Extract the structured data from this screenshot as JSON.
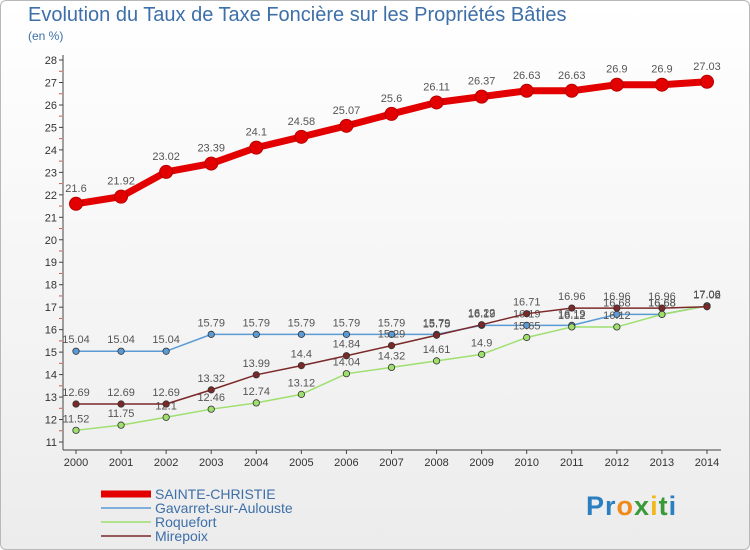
{
  "header": {
    "title": "Evolution du Taux de Taxe Foncière sur les Propriétés Bâties",
    "unit": "(en %)"
  },
  "logo": {
    "text": "Proxiti",
    "letters": [
      "P",
      "r",
      "o",
      "x",
      "i",
      "t",
      "i"
    ],
    "colors": [
      "#2a7fc0",
      "#2a7fc0",
      "#f08a1c",
      "#3a9a3a",
      "#f0b81c",
      "#3a9a3a",
      "#2a7fc0"
    ]
  },
  "chart_data": {
    "type": "line",
    "title": "Evolution du Taux de Taxe Foncière sur les Propriétés Bâties",
    "ylabel": "(en %)",
    "xlabel": "",
    "x": [
      2000,
      2001,
      2002,
      2003,
      2004,
      2005,
      2006,
      2007,
      2008,
      2009,
      2010,
      2011,
      2012,
      2013,
      2014
    ],
    "ylim": [
      11,
      28
    ],
    "yticks": [
      11,
      12,
      13,
      14,
      15,
      16,
      17,
      18,
      19,
      20,
      21,
      22,
      23,
      24,
      25,
      26,
      27,
      28
    ],
    "grid": false,
    "legend": "bottom-left",
    "series": [
      {
        "name": "SAINTE-CHRISTIE",
        "color": "#e30000",
        "values": [
          21.6,
          21.92,
          23.02,
          23.39,
          24.1,
          24.58,
          25.07,
          25.6,
          26.11,
          26.37,
          26.63,
          26.63,
          26.9,
          26.9,
          27.03
        ]
      },
      {
        "name": "Gavarret-sur-Aulouste",
        "color": "#5b9bd5",
        "values": [
          15.04,
          15.04,
          15.04,
          15.79,
          15.79,
          15.79,
          15.79,
          15.79,
          15.79,
          16.19,
          16.19,
          16.19,
          16.68,
          16.68,
          17.06
        ]
      },
      {
        "name": "Roquefort",
        "color": "#9edf6e",
        "values": [
          11.52,
          11.75,
          12.1,
          12.46,
          12.74,
          13.12,
          14.04,
          14.32,
          14.61,
          14.9,
          15.65,
          16.12,
          16.12,
          16.68,
          17.06
        ]
      },
      {
        "name": "Mirepoix",
        "color": "#7a2828",
        "values": [
          12.69,
          12.69,
          12.69,
          13.32,
          13.99,
          14.4,
          14.84,
          15.29,
          15.75,
          16.22,
          16.71,
          16.96,
          16.96,
          16.96,
          17.02
        ]
      }
    ]
  }
}
